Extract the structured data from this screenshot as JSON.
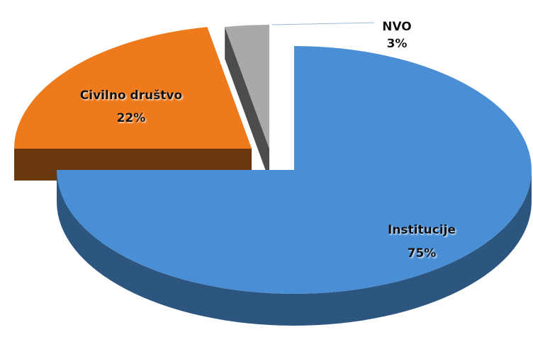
{
  "chart_data": {
    "type": "pie",
    "categories": [
      "Institucije",
      "Civilno društvo",
      "NVO"
    ],
    "values": [
      75,
      22,
      3
    ],
    "value_labels": [
      "75%",
      "22%",
      "3%"
    ],
    "colors": [
      "#4a8fd6",
      "#ee7a1c",
      "#a9a9a9"
    ]
  }
}
